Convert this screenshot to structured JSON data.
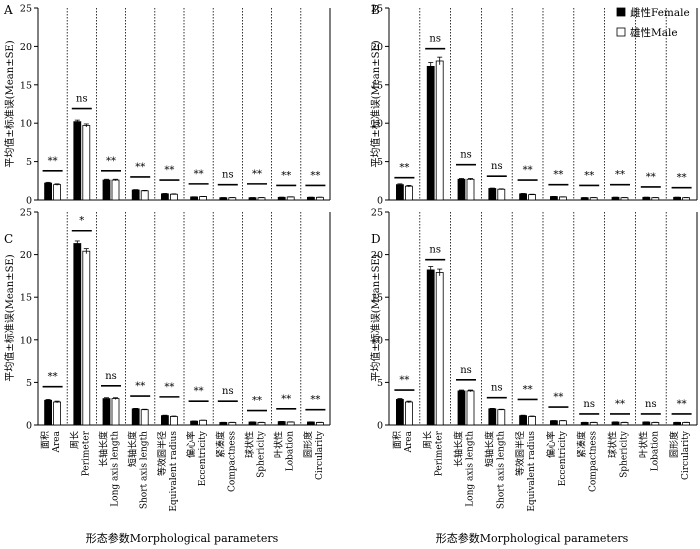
{
  "chart_data": {
    "type": "bar",
    "categories": [
      {
        "zh": "面积",
        "en": "Area"
      },
      {
        "zh": "周长",
        "en": "Perimeter"
      },
      {
        "zh": "长轴长度",
        "en": "Long axis length"
      },
      {
        "zh": "短轴长度",
        "en": "Short axis length"
      },
      {
        "zh": "等效圆半径",
        "en": "Equivalent radius"
      },
      {
        "zh": "偏心率",
        "en": "Eccentricity"
      },
      {
        "zh": "紧凑度",
        "en": "Compactness"
      },
      {
        "zh": "球状性",
        "en": "Sphericity"
      },
      {
        "zh": "叶状性",
        "en": "Lobation"
      },
      {
        "zh": "圆形度",
        "en": "Circularity"
      }
    ],
    "ylabel": "平均值±标准误(Mean±SE)",
    "xlabel": "形态参数Morphological parameters",
    "ylim": [
      0,
      25
    ],
    "yticks": [
      0,
      5,
      10,
      15,
      20,
      25
    ],
    "legend": {
      "position": "top-right",
      "female": "雌性Female",
      "male": "雄性Male"
    },
    "series_colors": {
      "female": "#000000",
      "male": "#ffffff"
    },
    "panels": [
      {
        "letter": "A",
        "female": [
          2.2,
          10.2,
          2.6,
          1.3,
          0.8,
          0.4,
          0.3,
          0.3,
          0.35,
          0.35
        ],
        "male": [
          2.0,
          9.7,
          2.6,
          1.2,
          0.75,
          0.45,
          0.3,
          0.3,
          0.4,
          0.35
        ],
        "female_err": [
          0.1,
          0.2,
          0.1,
          0.05,
          0.05,
          0.02,
          0.02,
          0.02,
          0.02,
          0.02
        ],
        "male_err": [
          0.1,
          0.2,
          0.1,
          0.05,
          0.05,
          0.02,
          0.02,
          0.02,
          0.02,
          0.02
        ],
        "sig": [
          "**",
          "ns",
          "**",
          "**",
          "**",
          "**",
          "ns",
          "**",
          "**",
          "**"
        ],
        "sig_line": [
          3.8,
          11.9,
          3.8,
          3.0,
          2.6,
          2.1,
          2.0,
          2.1,
          1.9,
          1.9
        ]
      },
      {
        "letter": "B",
        "female": [
          2.0,
          17.4,
          2.7,
          1.5,
          0.8,
          0.45,
          0.3,
          0.35,
          0.35,
          0.35
        ],
        "male": [
          1.8,
          18.1,
          2.7,
          1.4,
          0.7,
          0.4,
          0.3,
          0.3,
          0.3,
          0.3
        ],
        "female_err": [
          0.1,
          0.5,
          0.1,
          0.05,
          0.05,
          0.02,
          0.02,
          0.02,
          0.02,
          0.02
        ],
        "male_err": [
          0.1,
          0.5,
          0.1,
          0.05,
          0.05,
          0.02,
          0.02,
          0.02,
          0.02,
          0.02
        ],
        "sig": [
          "**",
          "ns",
          "ns",
          "ns",
          "**",
          "**",
          "**",
          "**",
          "**",
          "**"
        ],
        "sig_line": [
          2.9,
          19.7,
          4.6,
          3.1,
          2.6,
          2.0,
          1.9,
          2.0,
          1.7,
          1.6
        ]
      },
      {
        "letter": "C",
        "female": [
          2.9,
          21.3,
          3.1,
          1.9,
          1.1,
          0.45,
          0.3,
          0.35,
          0.4,
          0.35
        ],
        "male": [
          2.7,
          20.4,
          3.1,
          1.8,
          1.0,
          0.55,
          0.3,
          0.3,
          0.35,
          0.3
        ],
        "female_err": [
          0.1,
          0.3,
          0.1,
          0.05,
          0.05,
          0.02,
          0.02,
          0.02,
          0.02,
          0.02
        ],
        "male_err": [
          0.1,
          0.3,
          0.1,
          0.05,
          0.05,
          0.02,
          0.02,
          0.02,
          0.02,
          0.02
        ],
        "sig": [
          "**",
          "*",
          "ns",
          "**",
          "**",
          "**",
          "ns",
          "**",
          "**",
          "**"
        ],
        "sig_line": [
          4.5,
          22.8,
          4.6,
          3.4,
          3.3,
          2.8,
          2.8,
          1.7,
          1.9,
          1.8
        ]
      },
      {
        "letter": "D",
        "female": [
          3.0,
          18.2,
          4.0,
          1.9,
          1.1,
          0.5,
          0.3,
          0.35,
          0.35,
          0.3
        ],
        "male": [
          2.7,
          17.9,
          4.0,
          1.8,
          1.0,
          0.5,
          0.3,
          0.3,
          0.3,
          0.3
        ],
        "female_err": [
          0.1,
          0.4,
          0.1,
          0.05,
          0.05,
          0.02,
          0.02,
          0.02,
          0.02,
          0.02
        ],
        "male_err": [
          0.1,
          0.4,
          0.1,
          0.05,
          0.05,
          0.02,
          0.02,
          0.02,
          0.02,
          0.02
        ],
        "sig": [
          "**",
          "ns",
          "ns",
          "ns",
          "**",
          "**",
          "ns",
          "**",
          "ns",
          "**"
        ],
        "sig_line": [
          4.1,
          19.4,
          5.3,
          3.2,
          3.0,
          2.1,
          1.3,
          1.3,
          1.3,
          1.3
        ]
      }
    ]
  }
}
